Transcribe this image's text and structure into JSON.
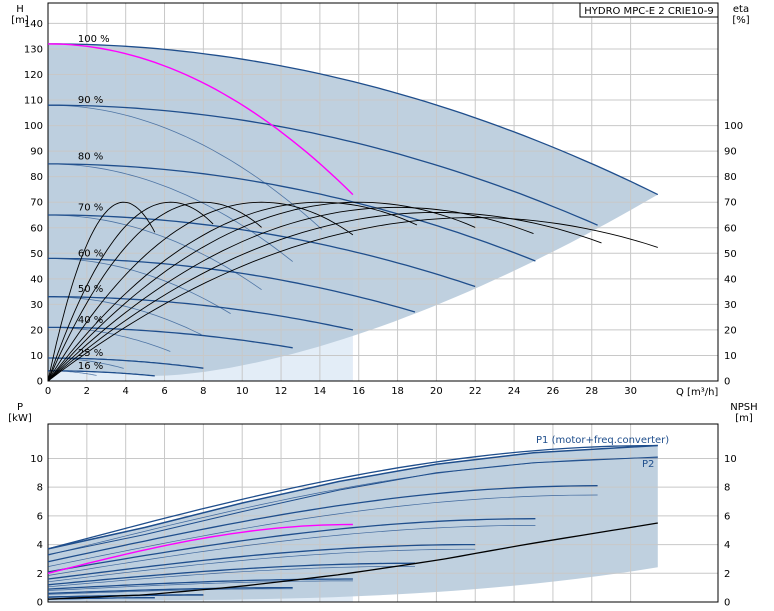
{
  "chart_data": [
    {
      "type": "line",
      "title": "HYDRO MPC-E 2 CRIE10-9",
      "xlabel": "Q [m³/h]",
      "ylabel": "H",
      "ylabel_unit": "[m]",
      "y2label": "eta",
      "y2label_unit": "[%]",
      "xlim": [
        0,
        34.5
      ],
      "ylim": [
        0,
        148
      ],
      "y2lim": [
        0,
        148
      ],
      "x_ticks": [
        0,
        2,
        4,
        6,
        8,
        10,
        12,
        14,
        16,
        18,
        20,
        22,
        24,
        26,
        28,
        30
      ],
      "y_ticks": [
        0,
        10,
        20,
        30,
        40,
        50,
        60,
        70,
        80,
        90,
        100,
        110,
        120,
        130,
        140
      ],
      "y2_ticks": [
        0,
        10,
        20,
        30,
        40,
        50,
        60,
        70,
        80,
        90,
        100
      ],
      "grid": true,
      "colors": {
        "shade": "#b8cbdc",
        "shade_light": "#e3edf7",
        "curve": "#1f4e8c",
        "highlight": "#ff00ff",
        "eta": "#000000"
      },
      "speed_labels": [
        {
          "text": "100 %",
          "x": 3.6,
          "y": 132
        },
        {
          "text": "90 %",
          "x": 3.6,
          "y": 108
        },
        {
          "text": "80 %",
          "x": 3.6,
          "y": 86
        },
        {
          "text": "70 %",
          "x": 3.6,
          "y": 66
        },
        {
          "text": "60 %",
          "x": 3.6,
          "y": 48
        },
        {
          "text": "50 %",
          "x": 3.6,
          "y": 34
        },
        {
          "text": "40 %",
          "x": 3.6,
          "y": 22
        },
        {
          "text": "25 %",
          "x": 3.6,
          "y": 9
        },
        {
          "text": "16 %",
          "x": 3.6,
          "y": 4
        }
      ],
      "head_curves_1pump": [
        {
          "h0": 132,
          "qmax": 15.7
        },
        {
          "h0": 108,
          "qmax": 14.1
        },
        {
          "h0": 85,
          "qmax": 12.6
        },
        {
          "h0": 65,
          "qmax": 11.0
        },
        {
          "h0": 48,
          "qmax": 9.4
        },
        {
          "h0": 33,
          "qmax": 7.9
        },
        {
          "h0": 21,
          "qmax": 6.3
        },
        {
          "h0": 9,
          "qmax": 3.9
        },
        {
          "h0": 4,
          "qmax": 2.5
        }
      ],
      "head_curves_2pumps": [
        {
          "h0": 132,
          "qmax": 31.4,
          "hend": 73
        },
        {
          "h0": 108,
          "qmax": 28.3,
          "hend": 61
        },
        {
          "h0": 85,
          "qmax": 25.1,
          "hend": 47
        },
        {
          "h0": 65,
          "qmax": 22.0,
          "hend": 37
        },
        {
          "h0": 48,
          "qmax": 18.9,
          "hend": 27
        },
        {
          "h0": 33,
          "qmax": 15.7,
          "hend": 20
        },
        {
          "h0": 21,
          "qmax": 12.6,
          "hend": 13
        },
        {
          "h0": 9,
          "qmax": 8.0,
          "hend": 5
        },
        {
          "h0": 4,
          "qmax": 5.5,
          "hend": 2
        }
      ],
      "eta_curves": [
        {
          "qmax": 5.5,
          "peak": 70,
          "qpeak": 3.9
        },
        {
          "qmax": 8.5,
          "peak": 70,
          "qpeak": 6.3
        },
        {
          "qmax": 11.0,
          "peak": 70,
          "qpeak": 8.0
        },
        {
          "qmax": 15.7,
          "peak": 70,
          "qpeak": 11.0
        },
        {
          "qmax": 19.0,
          "peak": 70,
          "qpeak": 14.0
        },
        {
          "qmax": 22.0,
          "peak": 70,
          "qpeak": 16.0
        },
        {
          "qmax": 25.0,
          "peak": 68,
          "qpeak": 18.0
        },
        {
          "qmax": 28.5,
          "peak": 66,
          "qpeak": 20.0
        },
        {
          "qmax": 31.4,
          "peak": 64,
          "qpeak": 22.0
        }
      ]
    },
    {
      "type": "line",
      "xlabel": "",
      "ylabel": "P",
      "ylabel_unit": "[kW]",
      "y2label": "NPSH",
      "y2label_unit": "[m]",
      "xlim": [
        0,
        34.5
      ],
      "ylim": [
        0,
        12.4
      ],
      "y2lim": [
        0,
        12.4
      ],
      "y_ticks": [
        0,
        2,
        4,
        6,
        8,
        10
      ],
      "y2_ticks": [
        0,
        2,
        4,
        6,
        8,
        10
      ],
      "grid": true,
      "series": [
        {
          "name": "P1 (motor+freq.converter)",
          "x": [
            0,
            5,
            10,
            15,
            20,
            25,
            31.4
          ],
          "values": [
            3.7,
            5.2,
            6.9,
            8.4,
            9.6,
            10.4,
            10.9
          ]
        },
        {
          "name": "P2",
          "x": [
            0,
            5,
            10,
            15,
            20,
            25,
            31.4
          ],
          "values": [
            3.3,
            4.7,
            6.3,
            7.8,
            9.0,
            9.7,
            10.1
          ]
        }
      ],
      "power_curves": [
        {
          "p0": 3.7,
          "p1": 10.9,
          "qmax": 31.4
        },
        {
          "p0": 2.8,
          "p1": 8.1,
          "qmax": 28.3
        },
        {
          "p0": 2.1,
          "p1": 5.8,
          "qmax": 25.1
        },
        {
          "p0": 1.6,
          "p1": 4.0,
          "qmax": 22.0
        },
        {
          "p0": 1.2,
          "p1": 2.7,
          "qmax": 18.9
        },
        {
          "p0": 0.9,
          "p1": 1.6,
          "qmax": 15.7
        },
        {
          "p0": 0.6,
          "p1": 1.0,
          "qmax": 12.6
        },
        {
          "p0": 0.35,
          "p1": 0.5,
          "qmax": 8.0
        },
        {
          "p0": 0.2,
          "p1": 0.3,
          "qmax": 5.5
        }
      ],
      "highlight_power": {
        "p0": 2.0,
        "p1": 5.4,
        "qmax": 15.7
      },
      "npsh": {
        "x": [
          0,
          5,
          10,
          15,
          20,
          25,
          31.4
        ],
        "values": [
          0.2,
          0.5,
          1.1,
          1.9,
          2.9,
          4.1,
          5.5
        ]
      }
    }
  ]
}
